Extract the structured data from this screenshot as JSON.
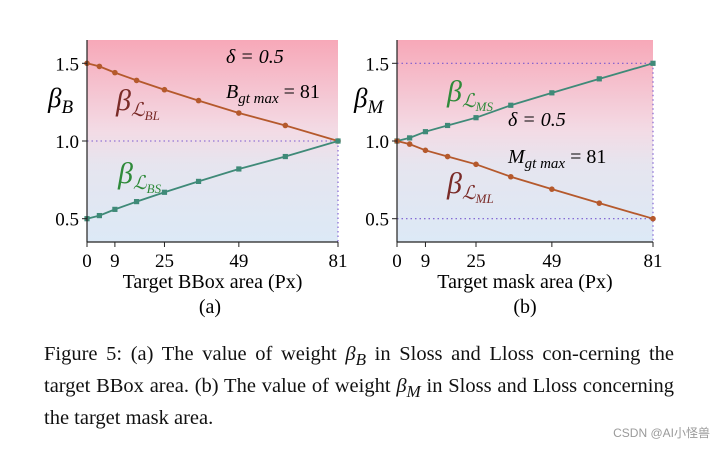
{
  "chart_data": [
    {
      "type": "line",
      "panel_label": "(a)",
      "xlabel": "Target BBox area (Px)",
      "ylabel": "β",
      "ylabel_sub": "B",
      "x_ticks": [
        0,
        9,
        25,
        49,
        81
      ],
      "y_ticks": [
        "0.5",
        "1.0",
        "1.5"
      ],
      "xlim": [
        0,
        81
      ],
      "ylim": [
        0.35,
        1.65
      ],
      "annotations": [
        "δ = 0.5",
        "B",
        "gt max",
        " = 81"
      ],
      "background": {
        "top": "#f7a8b8",
        "bottom": "#dce9f6"
      },
      "series": [
        {
          "name_main": "β",
          "name_sub": "BL",
          "color": "#b5592c",
          "x": [
            0,
            4,
            9,
            16,
            25,
            36,
            49,
            64,
            81
          ],
          "y": [
            1.5,
            1.48,
            1.44,
            1.39,
            1.33,
            1.26,
            1.18,
            1.1,
            1.0
          ]
        },
        {
          "name_main": "β",
          "name_sub": "BS",
          "color": "#3f8a78",
          "x": [
            0,
            4,
            9,
            16,
            25,
            36,
            49,
            64,
            81
          ],
          "y": [
            0.5,
            0.52,
            0.56,
            0.61,
            0.67,
            0.74,
            0.82,
            0.9,
            1.0
          ]
        }
      ]
    },
    {
      "type": "line",
      "panel_label": "(b)",
      "xlabel": "Target mask area (Px)",
      "ylabel": "β",
      "ylabel_sub": "M",
      "x_ticks": [
        0,
        9,
        25,
        49,
        81
      ],
      "y_ticks": [
        "0.5",
        "1.0",
        "1.5"
      ],
      "xlim": [
        0,
        81
      ],
      "ylim": [
        0.35,
        1.65
      ],
      "annotations": [
        "δ = 0.5",
        "M",
        "gt max",
        " = 81"
      ],
      "background": {
        "top": "#f7a8b8",
        "bottom": "#dce9f6"
      },
      "series": [
        {
          "name_main": "β",
          "name_sub": "MS",
          "color": "#3f8a78",
          "x": [
            0,
            4,
            9,
            16,
            25,
            36,
            49,
            64,
            81
          ],
          "y": [
            1.0,
            1.02,
            1.06,
            1.1,
            1.15,
            1.23,
            1.31,
            1.4,
            1.5
          ]
        },
        {
          "name_main": "β",
          "name_sub": "ML",
          "color": "#b5592c",
          "x": [
            0,
            4,
            9,
            16,
            25,
            36,
            49,
            64,
            81
          ],
          "y": [
            1.0,
            0.98,
            0.94,
            0.9,
            0.85,
            0.77,
            0.69,
            0.6,
            0.5
          ]
        }
      ]
    }
  ],
  "caption": {
    "p1": "Figure 5: (a) The value of weight ",
    "beta": "β",
    "sub_b": "B",
    "p2": " in Sloss and Lloss con-cerning the target BBox area. (b) The value of weight ",
    "sub_m": "M",
    "p3": " in Sloss and Lloss concerning the target mask area."
  },
  "watermark": "CSDN @AI小怪兽"
}
